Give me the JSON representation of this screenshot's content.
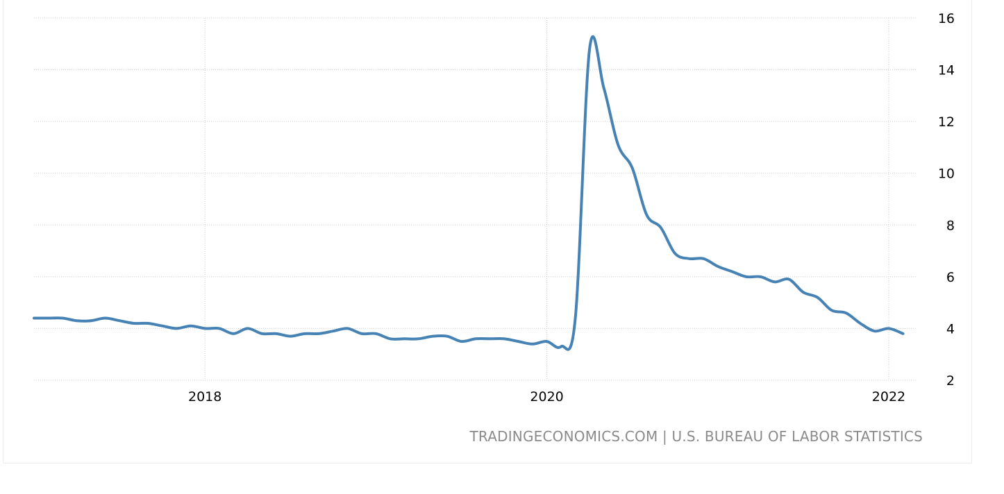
{
  "source": "TRADINGECONOMICS.COM | U.S. BUREAU OF LABOR STATISTICS",
  "colors": {
    "line": "#4682b4",
    "grid": "#cccccc",
    "tick_text": "#000000",
    "source_text": "#8a8a8a"
  },
  "chart_data": {
    "type": "line",
    "title": "",
    "xlabel": "",
    "ylabel": "",
    "ylim": [
      2,
      16
    ],
    "xlim": [
      "2017-01",
      "2022-03"
    ],
    "grid": true,
    "y_axis_position": "right",
    "y_ticks": [
      "2",
      "4",
      "6",
      "8",
      "10",
      "12",
      "14",
      "16"
    ],
    "x_ticks": [
      "2018",
      "2020",
      "2022"
    ],
    "series": [
      {
        "x": [
          "2017-01",
          "2017-02",
          "2017-03",
          "2017-04",
          "2017-05",
          "2017-06",
          "2017-07",
          "2017-08",
          "2017-09",
          "2017-10",
          "2017-11",
          "2017-12",
          "2018-01",
          "2018-02",
          "2018-03",
          "2018-04",
          "2018-05",
          "2018-06",
          "2018-07",
          "2018-08",
          "2018-09",
          "2018-10",
          "2018-11",
          "2018-12",
          "2019-01",
          "2019-02",
          "2019-03",
          "2019-04",
          "2019-05",
          "2019-06",
          "2019-07",
          "2019-08",
          "2019-09",
          "2019-10",
          "2019-11",
          "2019-12",
          "2020-01",
          "2020-02",
          "2020-03",
          "2020-04",
          "2020-05",
          "2020-06",
          "2020-07",
          "2020-08",
          "2020-09",
          "2020-10",
          "2020-11",
          "2020-12",
          "2021-01",
          "2021-02",
          "2021-03",
          "2021-04",
          "2021-05",
          "2021-06",
          "2021-07",
          "2021-08",
          "2021-09",
          "2021-10",
          "2021-11",
          "2021-12",
          "2022-01",
          "2022-02"
        ],
        "values": [
          4.4,
          4.4,
          4.4,
          4.3,
          4.3,
          4.4,
          4.3,
          4.2,
          4.2,
          4.1,
          4.0,
          4.1,
          4.0,
          4.0,
          3.8,
          4.0,
          3.8,
          3.8,
          3.7,
          3.8,
          3.8,
          3.9,
          4.0,
          3.8,
          3.8,
          3.6,
          3.6,
          3.6,
          3.7,
          3.7,
          3.5,
          3.6,
          3.6,
          3.6,
          3.5,
          3.4,
          3.5,
          3.3,
          4.4,
          14.8,
          13.3,
          11.1,
          10.2,
          8.4,
          7.9,
          6.9,
          6.7,
          6.7,
          6.4,
          6.2,
          6.0,
          6.0,
          5.8,
          5.9,
          5.4,
          5.2,
          4.7,
          4.6,
          4.2,
          3.9,
          4.0,
          3.8
        ]
      }
    ]
  }
}
